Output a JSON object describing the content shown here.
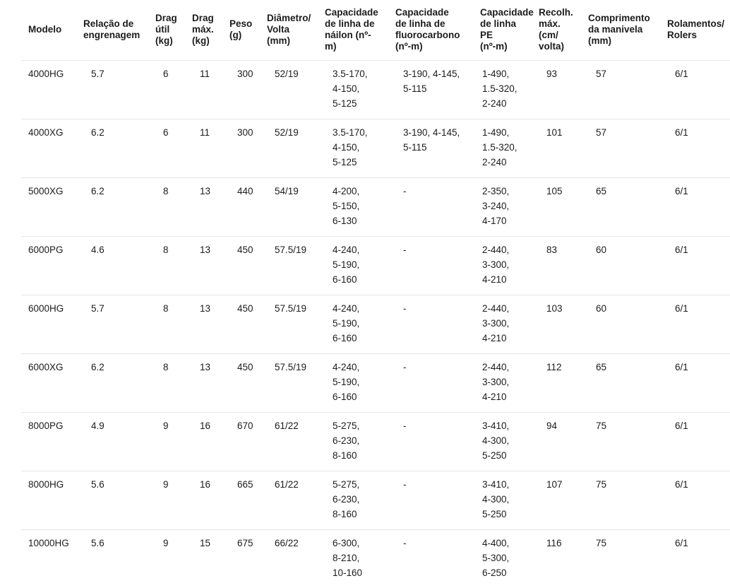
{
  "colors": {
    "background": "#ffffff",
    "text": "#1c1c1c",
    "divider": "#e8e8e8"
  },
  "table": {
    "columns": [
      {
        "id": "modelo",
        "label": "Modelo"
      },
      {
        "id": "gear-ratio",
        "label": "Relação de\nengrenagem"
      },
      {
        "id": "drag-util",
        "label": "Drag\nútil\n(kg)"
      },
      {
        "id": "drag-max",
        "label": "Drag\nmáx.\n(kg)"
      },
      {
        "id": "peso",
        "label": "Peso\n(g)"
      },
      {
        "id": "diametro-volta",
        "label": "Diâmetro/\nVolta\n(mm)"
      },
      {
        "id": "linha-nailon",
        "label": "Capacidade\nde linha de\nnáilon (nº-\nm)"
      },
      {
        "id": "linha-fluorocarbono",
        "label": "Capacidade\nde linha de\nfluorocarbono\n(nº-m)"
      },
      {
        "id": "linha-pe",
        "label": "Capacidade\nde linha PE\n(nº-m)"
      },
      {
        "id": "recolhimento-max",
        "label": "Recolh.\nmáx.\n(cm/\nvolta)"
      },
      {
        "id": "comprimento-manivela",
        "label": "Comprimento\nda manivela\n(mm)"
      },
      {
        "id": "rolamentos",
        "label": "Rolamentos/\nRolers"
      }
    ],
    "rows": [
      {
        "cells": [
          "4000HG",
          "5.7",
          "6",
          "11",
          "300",
          "52/19",
          "3.5-170,\n4-150,\n5-125",
          "3-190, 4-145,\n5-115",
          "1-490,\n1.5-320,\n2-240",
          "93",
          "57",
          "6/1"
        ]
      },
      {
        "cells": [
          "4000XG",
          "6.2",
          "6",
          "11",
          "300",
          "52/19",
          "3.5-170,\n4-150,\n5-125",
          "3-190, 4-145,\n5-115",
          "1-490,\n1.5-320,\n2-240",
          "101",
          "57",
          "6/1"
        ]
      },
      {
        "cells": [
          "5000XG",
          "6.2",
          "8",
          "13",
          "440",
          "54/19",
          "4-200,\n5-150,\n6-130",
          "-",
          "2-350,\n3-240,\n4-170",
          "105",
          "65",
          "6/1"
        ]
      },
      {
        "cells": [
          "6000PG",
          "4.6",
          "8",
          "13",
          "450",
          "57.5/19",
          "4-240,\n5-190,\n6-160",
          "-",
          "2-440,\n3-300,\n4-210",
          "83",
          "60",
          "6/1"
        ]
      },
      {
        "cells": [
          "6000HG",
          "5.7",
          "8",
          "13",
          "450",
          "57.5/19",
          "4-240,\n5-190,\n6-160",
          "-",
          "2-440,\n3-300,\n4-210",
          "103",
          "60",
          "6/1"
        ]
      },
      {
        "cells": [
          "6000XG",
          "6.2",
          "8",
          "13",
          "450",
          "57.5/19",
          "4-240,\n5-190,\n6-160",
          "-",
          "2-440,\n3-300,\n4-210",
          "112",
          "65",
          "6/1"
        ]
      },
      {
        "cells": [
          "8000PG",
          "4.9",
          "9",
          "16",
          "670",
          "61/22",
          "5-275,\n6-230,\n8-160",
          "-",
          "3-410,\n4-300,\n5-250",
          "94",
          "75",
          "6/1"
        ]
      },
      {
        "cells": [
          "8000HG",
          "5.6",
          "9",
          "16",
          "665",
          "61/22",
          "5-275,\n6-230,\n8-160",
          "-",
          "3-410,\n4-300,\n5-250",
          "107",
          "75",
          "6/1"
        ]
      },
      {
        "cells": [
          "10000HG",
          "5.6",
          "9",
          "15",
          "675",
          "66/22",
          "6-300,\n8-210,\n10-160",
          "-",
          "4-400,\n5-300,\n6-250",
          "116",
          "75",
          "6/1"
        ]
      }
    ]
  }
}
